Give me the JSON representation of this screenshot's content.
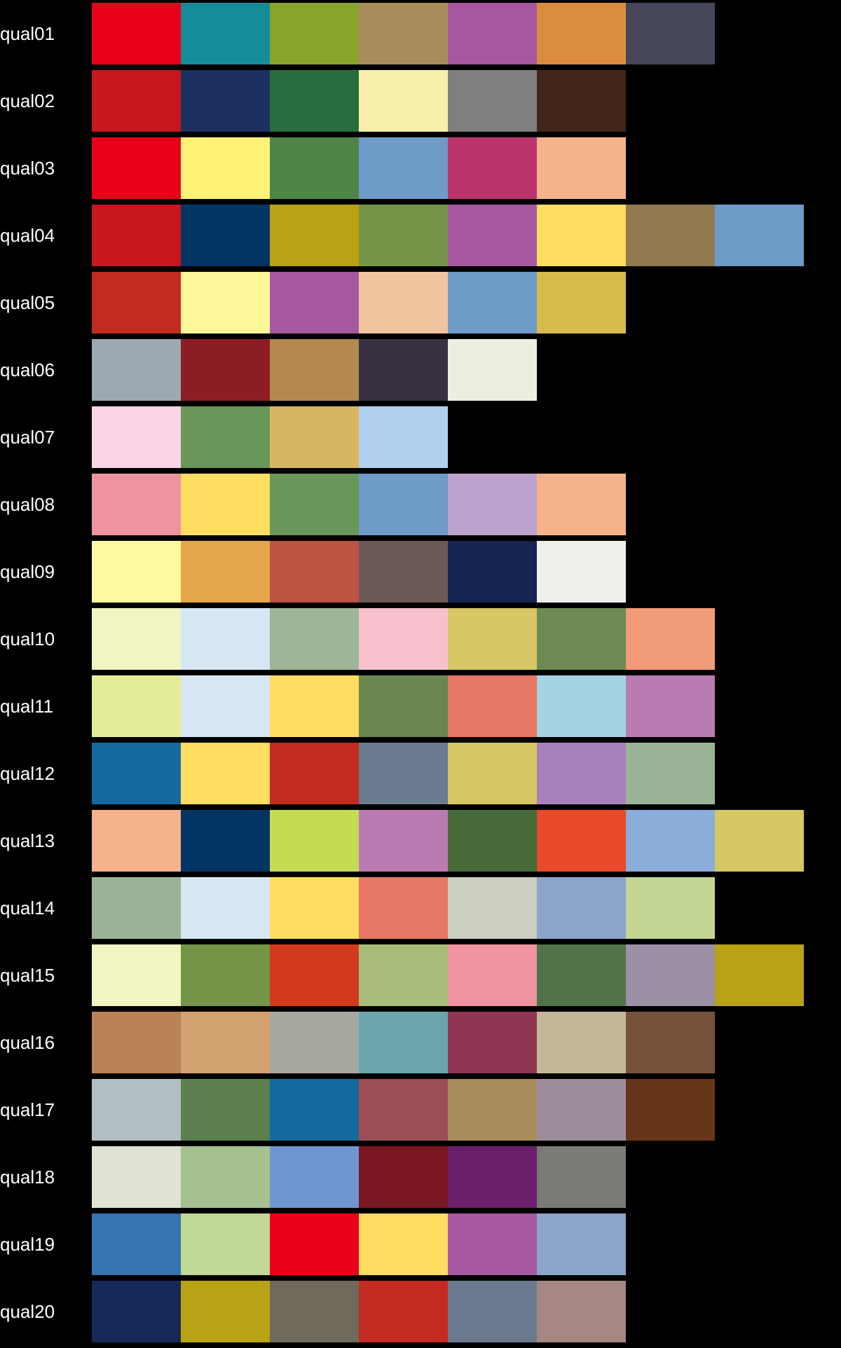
{
  "palettes": [
    {
      "name": "qual01",
      "colors": [
        "#e8001a",
        "#158d98",
        "#87a52a",
        "#a88d5b",
        "#a557a0",
        "#dc8c41",
        "#464659"
      ]
    },
    {
      "name": "qual02",
      "colors": [
        "#c8161e",
        "#1d3160",
        "#286d3e",
        "#f8f0aa",
        "#7f7f7f",
        "#432519"
      ]
    },
    {
      "name": "qual03",
      "colors": [
        "#e8001a",
        "#fff276",
        "#4e8446",
        "#6e9bc8",
        "#bb346b",
        "#f6b38b"
      ]
    },
    {
      "name": "qual04",
      "colors": [
        "#c8161e",
        "#023464",
        "#b9a214",
        "#759648",
        "#a557a0",
        "#ffdd60",
        "#927951",
        "#6e9bc8"
      ]
    },
    {
      "name": "qual05",
      "colors": [
        "#c32b20",
        "#fff89b",
        "#a557a0",
        "#f1c4a0",
        "#6e9bc8",
        "#d7bc4b"
      ]
    },
    {
      "name": "qual06",
      "colors": [
        "#9da9b0",
        "#8d1d24",
        "#b3894f",
        "#373041",
        "#edede2"
      ]
    },
    {
      "name": "qual07",
      "colors": [
        "#f9d4e6",
        "#699659",
        "#d7b661",
        "#b0d0ef"
      ]
    },
    {
      "name": "qual08",
      "colors": [
        "#f093a0",
        "#ffdd60",
        "#699659",
        "#6e9bc8",
        "#bea2ce",
        "#f6b38b"
      ]
    },
    {
      "name": "qual09",
      "colors": [
        "#fffaa0",
        "#e4a64b",
        "#bb5442",
        "#6c5958",
        "#142552",
        "#eef0ea"
      ]
    },
    {
      "name": "qual10",
      "colors": [
        "#f0f5c2",
        "#d6e7f3",
        "#9db697",
        "#f6c1cc",
        "#d7c664",
        "#6d8a52",
        "#f29b78"
      ]
    },
    {
      "name": "qual11",
      "colors": [
        "#e4ec98",
        "#d6e7f3",
        "#ffdd60",
        "#6a8651",
        "#e67865",
        "#a6d3e3",
        "#b97bb2"
      ]
    },
    {
      "name": "qual12",
      "colors": [
        "#146a9e",
        "#ffdd60",
        "#c32b20",
        "#6b7a8f",
        "#d7c664",
        "#a782bc",
        "#9bb497"
      ]
    },
    {
      "name": "qual13",
      "colors": [
        "#f6b38b",
        "#023464",
        "#c4db53",
        "#bb7bb2",
        "#466a37",
        "#e84a2a",
        "#8cadda",
        "#d7c664"
      ]
    },
    {
      "name": "qual14",
      "colors": [
        "#9bb497",
        "#d6e7f3",
        "#ffdd60",
        "#e67865",
        "#cbcfc1",
        "#8ca5c9",
        "#c2d592"
      ]
    },
    {
      "name": "qual15",
      "colors": [
        "#f0f5c2",
        "#759648",
        "#d33a1b",
        "#a9bd7b",
        "#f093a0",
        "#507349",
        "#9c90a7",
        "#b9a214"
      ]
    },
    {
      "name": "qual16",
      "colors": [
        "#b88156",
        "#d1a270",
        "#a7a9a0",
        "#6ba5ae",
        "#8e3653",
        "#c4b797",
        "#76523b"
      ]
    },
    {
      "name": "qual17",
      "colors": [
        "#b3bec2",
        "#5c804e",
        "#146a9e",
        "#9c4e57",
        "#a88d5b",
        "#9c8e9c",
        "#67351a"
      ]
    },
    {
      "name": "qual18",
      "colors": [
        "#e1e2d3",
        "#a7c08f",
        "#7096d1",
        "#7a1721",
        "#6a1f6b",
        "#7a7a76"
      ]
    },
    {
      "name": "qual19",
      "colors": [
        "#3773b1",
        "#c2d897",
        "#e8001a",
        "#ffdd60",
        "#a557a0",
        "#8ca5c9"
      ]
    },
    {
      "name": "qual20",
      "colors": [
        "#152856",
        "#b9a214",
        "#6f6a5c",
        "#c32b20",
        "#6b7a8f",
        "#a68783"
      ]
    }
  ]
}
